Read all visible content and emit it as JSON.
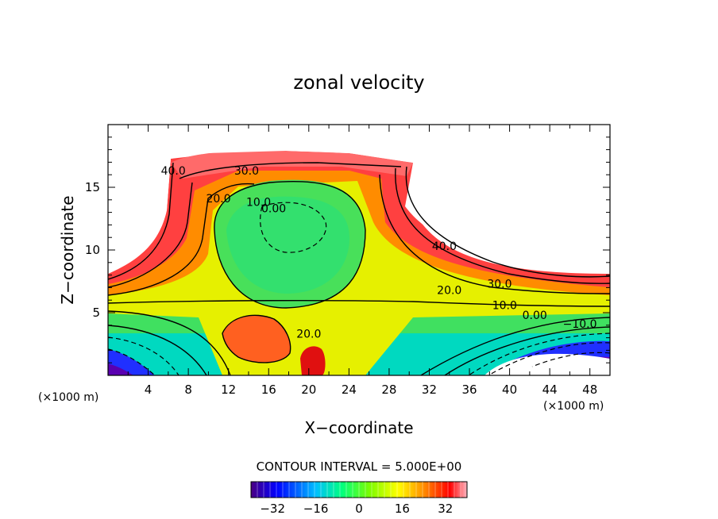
{
  "chart_data": {
    "type": "heatmap",
    "title": "zonal velocity",
    "xlabel": "X−coordinate",
    "ylabel": "Z−coordinate",
    "x_unit": "(×1000 m)",
    "y_unit": "(×1000 m)",
    "xlim": [
      0,
      50
    ],
    "ylim": [
      0,
      20
    ],
    "x_ticks": [
      "4",
      "8",
      "12",
      "16",
      "20",
      "24",
      "28",
      "32",
      "36",
      "40",
      "44",
      "48"
    ],
    "y_ticks": [
      "5",
      "10",
      "15"
    ],
    "contour_interval_text": "CONTOUR INTERVAL = 5.000E+00",
    "colorbar": {
      "range": [
        -40,
        40
      ],
      "tick_labels": [
        "−32",
        "−16",
        "0",
        "16",
        "32"
      ],
      "tick_values": [
        -32,
        -16,
        0,
        16,
        32
      ]
    },
    "contour_labels": [
      {
        "text": "40.0",
        "x": 6.5,
        "z": 16.0
      },
      {
        "text": "30.0",
        "x": 13.8,
        "z": 16.0
      },
      {
        "text": "20.0",
        "x": 11.0,
        "z": 13.8
      },
      {
        "text": "10.0",
        "x": 15.0,
        "z": 13.5
      },
      {
        "text": "0.00",
        "x": 16.5,
        "z": 13.0
      },
      {
        "text": "40.0",
        "x": 33.5,
        "z": 10.0
      },
      {
        "text": "30.0",
        "x": 39.0,
        "z": 7.0
      },
      {
        "text": "20.0",
        "x": 34.0,
        "z": 6.5
      },
      {
        "text": "10.0",
        "x": 39.5,
        "z": 5.3
      },
      {
        "text": "0.00",
        "x": 42.5,
        "z": 4.5
      },
      {
        "text": "−10.0",
        "x": 47.0,
        "z": 3.8
      },
      {
        "text": "20.0",
        "x": 20.0,
        "z": 3.0
      }
    ]
  }
}
